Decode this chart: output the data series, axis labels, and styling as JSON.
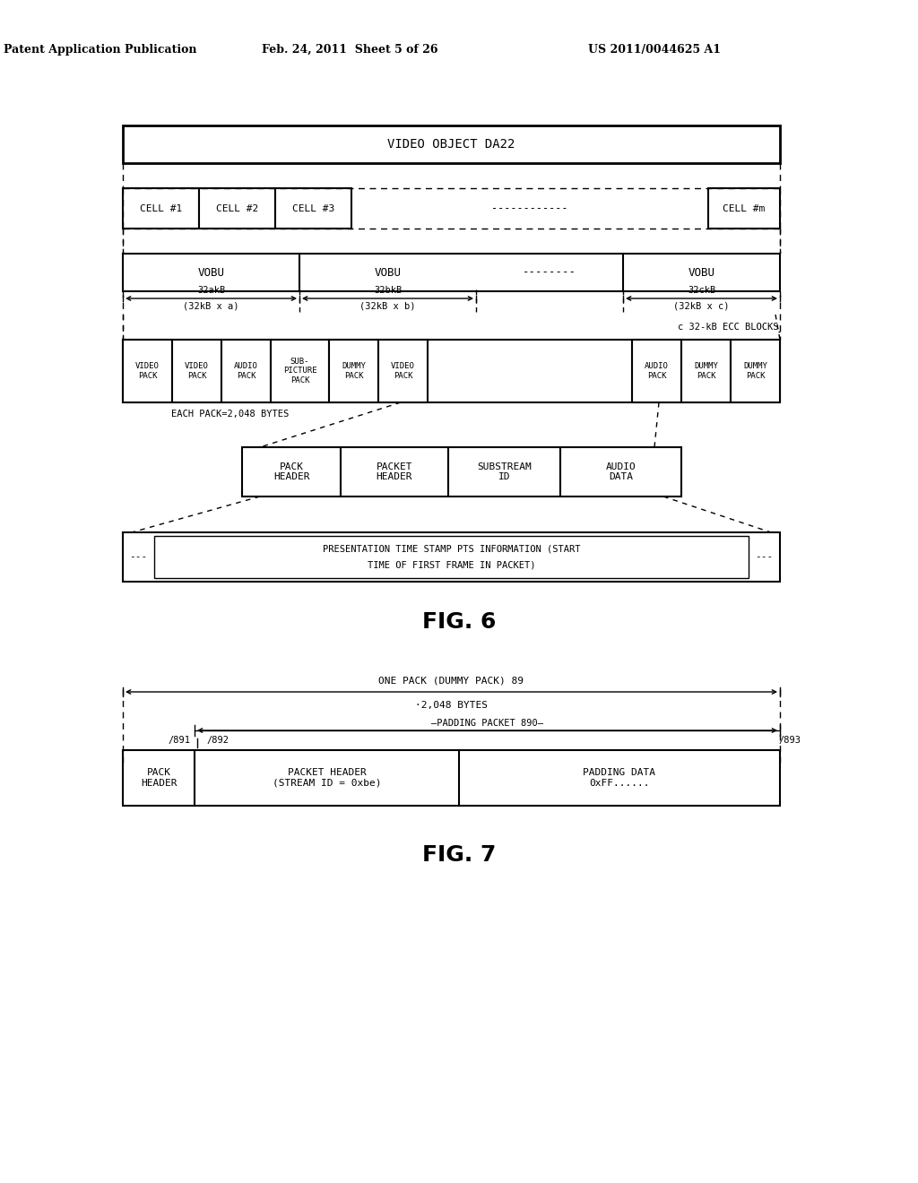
{
  "header_left": "Patent Application Publication",
  "header_mid": "Feb. 24, 2011  Sheet 5 of 26",
  "header_right": "US 2011/0044625 A1",
  "background": "#ffffff"
}
